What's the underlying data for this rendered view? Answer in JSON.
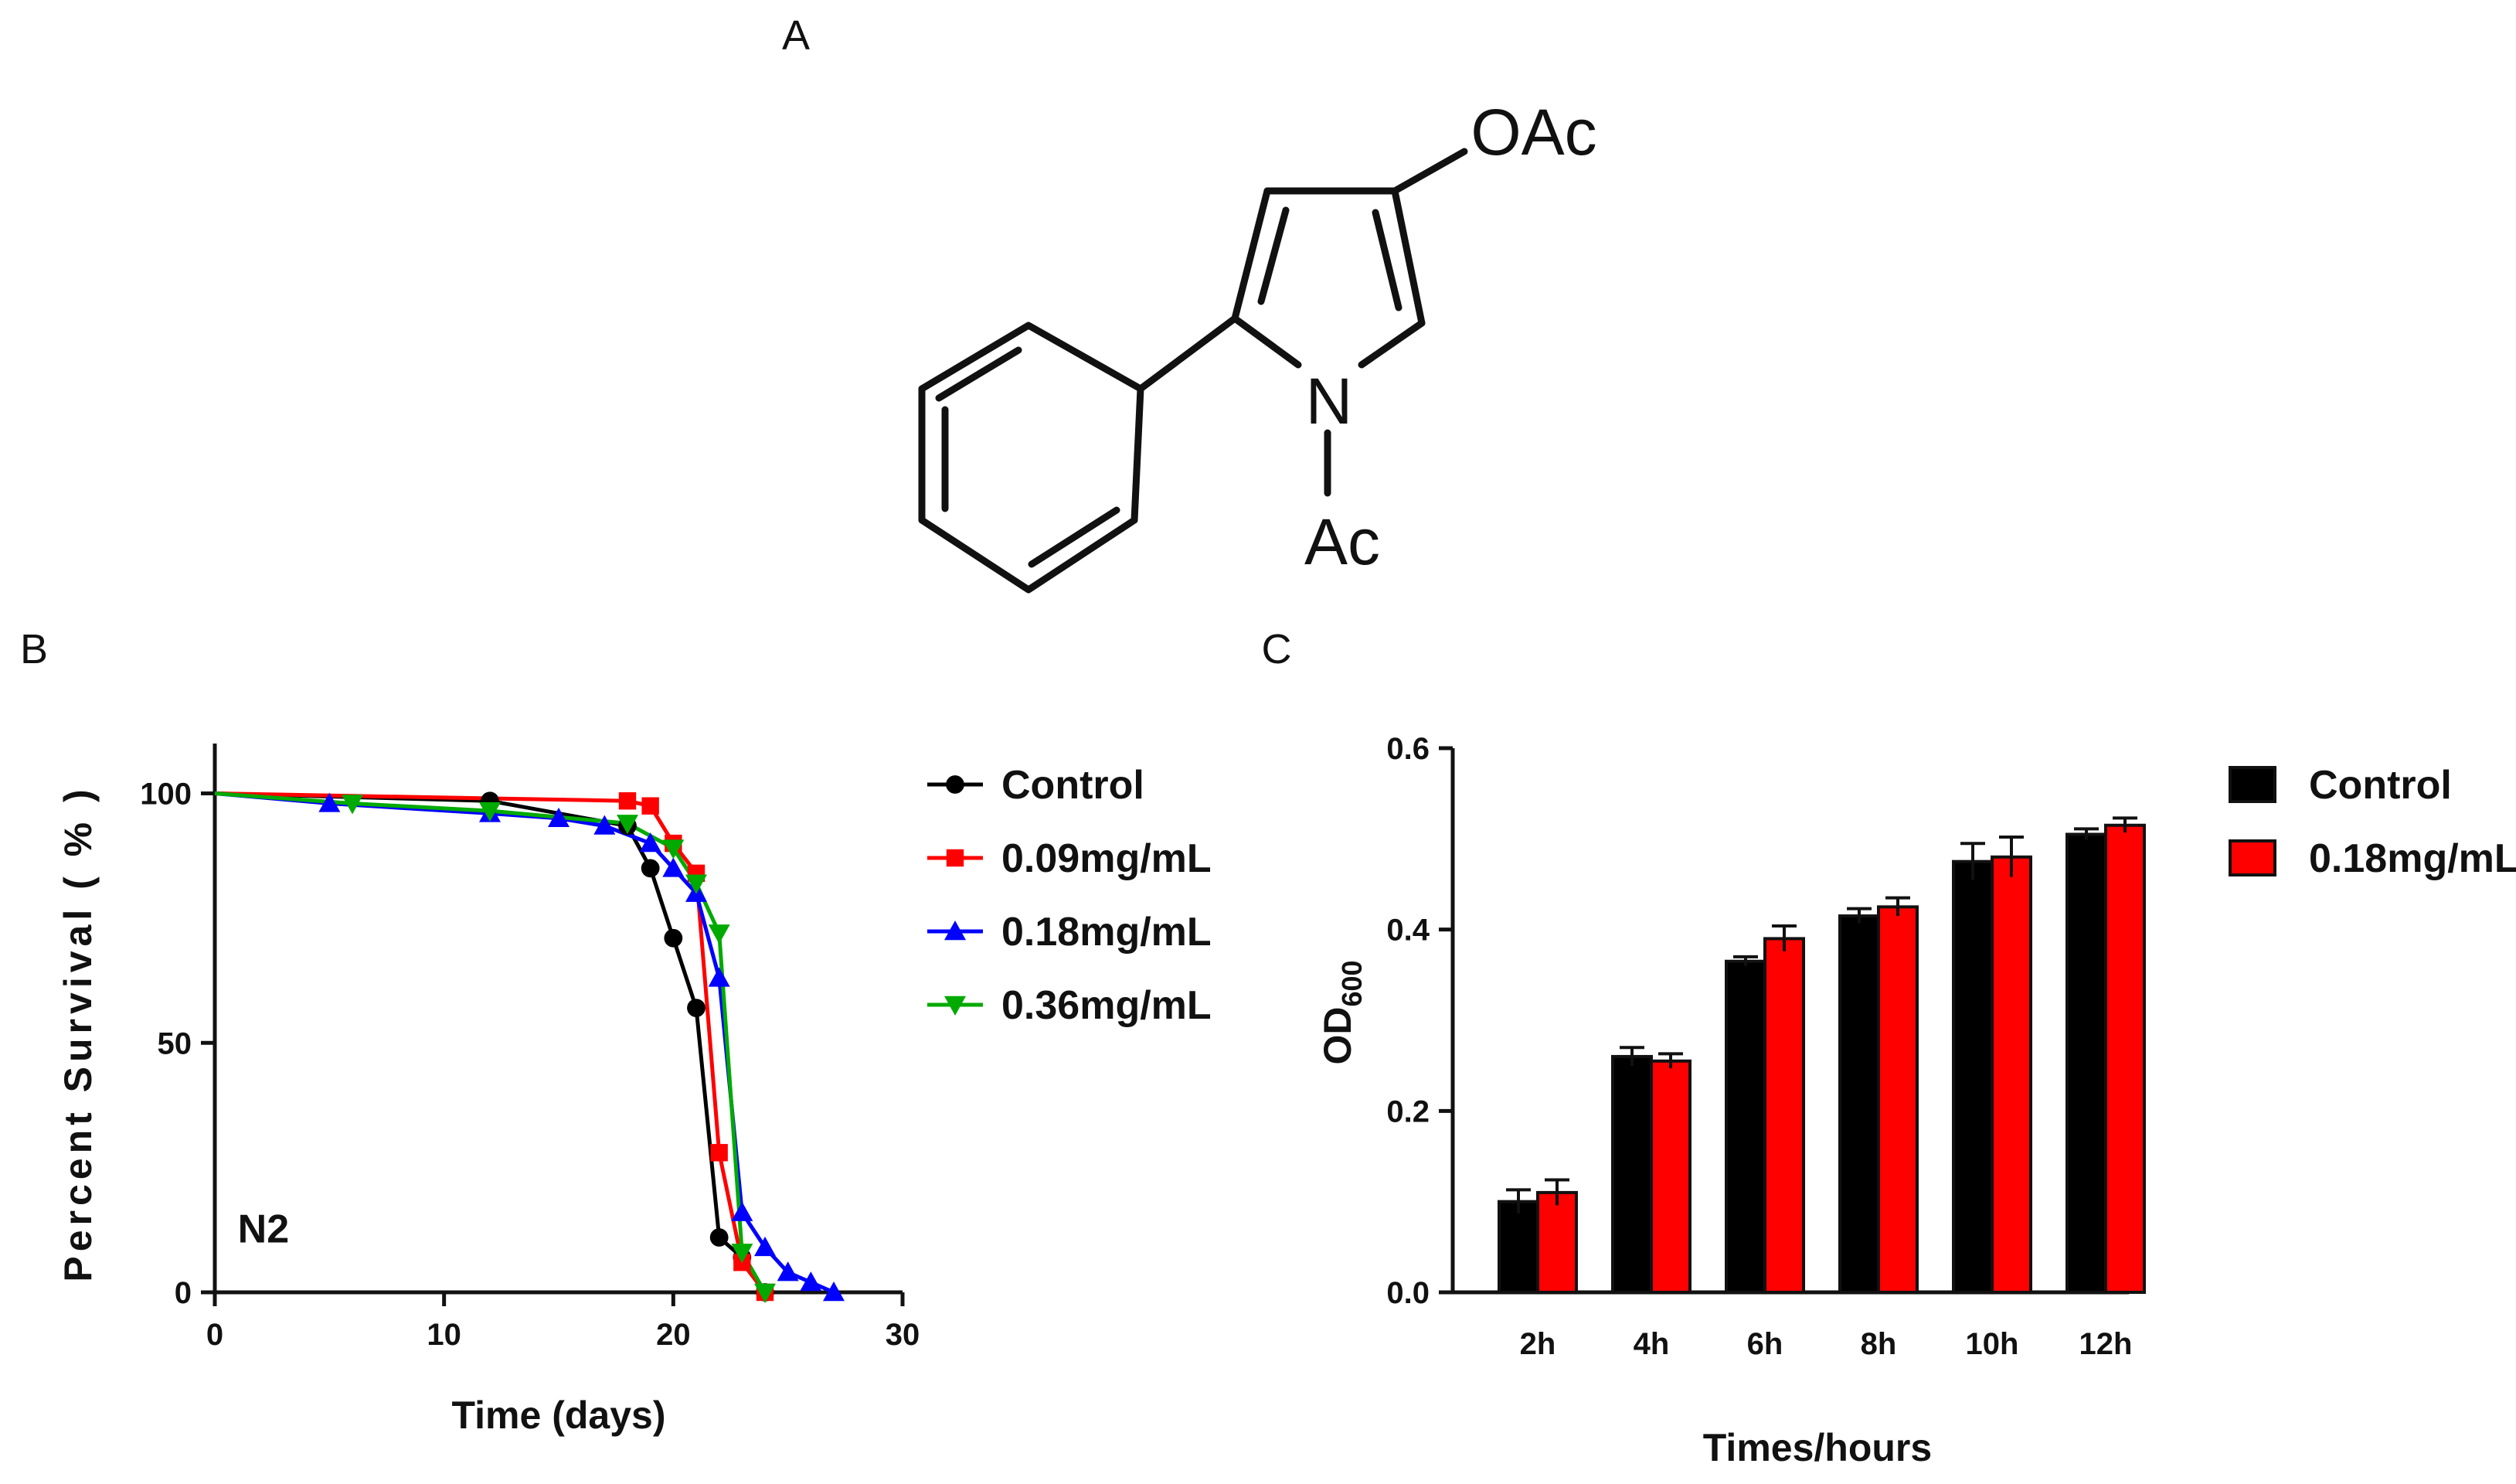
{
  "panels": {
    "a_label": "A",
    "b_label": "B",
    "c_label": "C"
  },
  "structure": {
    "substituent_top": "OAc",
    "ring_atom": "N",
    "substituent_bottom": "Ac"
  },
  "chart_data": [
    {
      "type": "line",
      "title": "",
      "annotation": "N2",
      "xlabel": "Time (days)",
      "ylabel": "Percent Survival ( % )",
      "xlim": [
        0,
        30
      ],
      "ylim": [
        0,
        110
      ],
      "xticks": [
        0,
        10,
        20,
        30
      ],
      "yticks": [
        0,
        50,
        100
      ],
      "grid": false,
      "legend_position": "right",
      "series": [
        {
          "name": "Control",
          "color": "#000000",
          "marker": "circle",
          "points": [
            [
              0,
              100
            ],
            [
              12,
              98.5
            ],
            [
              18,
              93.5
            ],
            [
              19,
              85
            ],
            [
              20,
              71
            ],
            [
              21,
              57
            ],
            [
              22,
              11
            ],
            [
              23,
              7
            ],
            [
              24,
              0
            ]
          ]
        },
        {
          "name": "0.09mg/mL",
          "color": "#ff0000",
          "marker": "square",
          "points": [
            [
              0,
              100
            ],
            [
              18,
              98.5
            ],
            [
              19,
              97.5
            ],
            [
              20,
              90
            ],
            [
              21,
              84
            ],
            [
              22,
              28
            ],
            [
              23,
              6
            ],
            [
              24,
              0
            ]
          ]
        },
        {
          "name": "0.18mg/mL",
          "color": "#0000ff",
          "marker": "triangle-up",
          "points": [
            [
              0,
              100
            ],
            [
              5,
              98
            ],
            [
              12,
              96
            ],
            [
              15,
              95
            ],
            [
              17,
              93.5
            ],
            [
              19,
              90
            ],
            [
              20,
              85
            ],
            [
              21,
              80
            ],
            [
              22,
              63
            ],
            [
              23,
              16
            ],
            [
              24,
              9
            ],
            [
              25,
              4
            ],
            [
              26,
              2
            ],
            [
              27,
              0
            ]
          ]
        },
        {
          "name": "0.36mg/mL",
          "color": "#00aa00",
          "marker": "triangle-down",
          "points": [
            [
              0,
              100
            ],
            [
              6,
              98
            ],
            [
              12,
              96.5
            ],
            [
              18,
              94
            ],
            [
              20,
              89
            ],
            [
              21,
              82
            ],
            [
              22,
              72
            ],
            [
              23,
              8
            ],
            [
              24,
              0
            ]
          ]
        }
      ]
    },
    {
      "type": "bar",
      "title": "",
      "xlabel": "Times/hours",
      "ylabel": "OD",
      "ylabel_sub": "600",
      "ylim": [
        0,
        0.6
      ],
      "yticks": [
        "0.0",
        "0.2",
        "0.4",
        "0.6"
      ],
      "grid": false,
      "legend_position": "right",
      "categories": [
        "2h",
        "4h",
        "6h",
        "8h",
        "10h",
        "12h"
      ],
      "series": [
        {
          "name": "Control",
          "color": "#000000",
          "values": [
            0.1,
            0.26,
            0.365,
            0.415,
            0.475,
            0.505
          ],
          "errors": [
            0.013,
            0.01,
            0.005,
            0.008,
            0.02,
            0.006
          ]
        },
        {
          "name": "0.18mg/mL",
          "color": "#ff0000",
          "values": [
            0.11,
            0.255,
            0.39,
            0.425,
            0.48,
            0.515
          ],
          "errors": [
            0.014,
            0.008,
            0.014,
            0.01,
            0.022,
            0.008
          ]
        }
      ]
    }
  ]
}
